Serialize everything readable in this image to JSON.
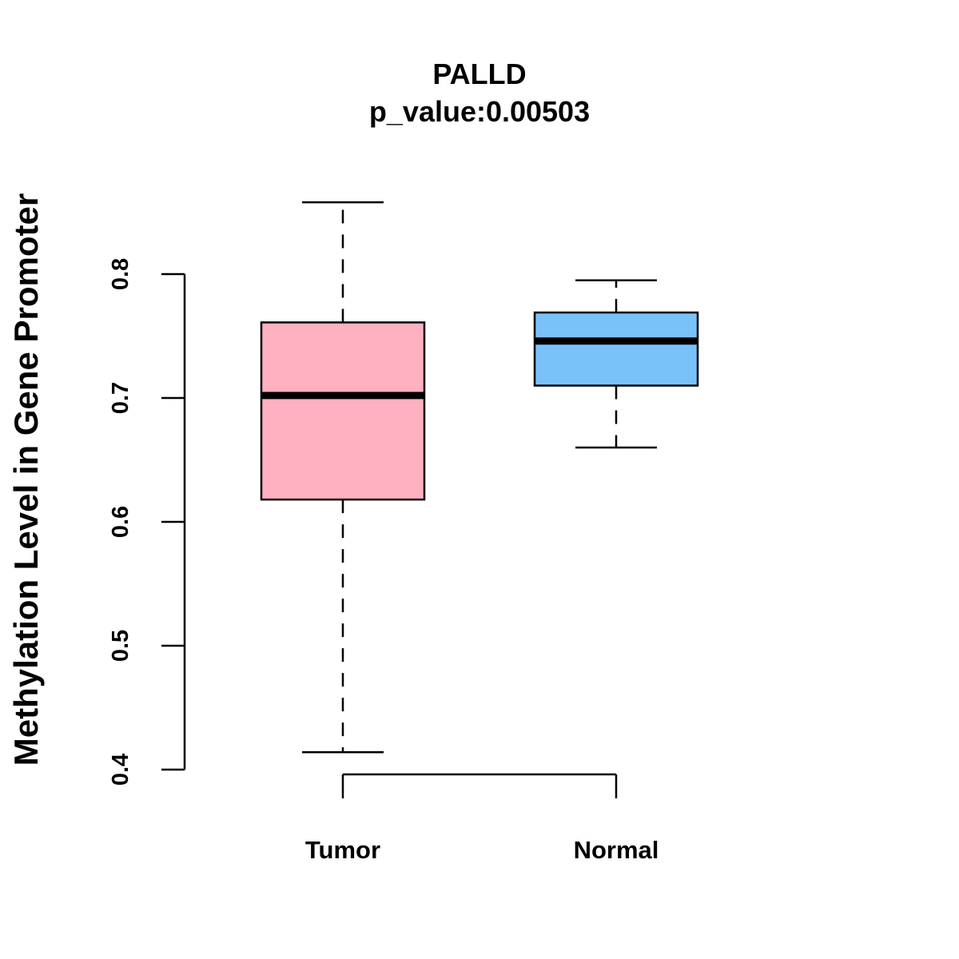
{
  "chart_data": {
    "type": "box",
    "title": "PALLD",
    "subtitle": "p_value:0.00503",
    "xlabel": "",
    "ylabel": "Methylation Level in Gene Promoter",
    "ylim": [
      0.4,
      0.8
    ],
    "yticks": [
      "0.4",
      "0.5",
      "0.6",
      "0.7",
      "0.8"
    ],
    "grid": false,
    "categories": [
      "Tumor",
      "Normal"
    ],
    "series": [
      {
        "name": "Tumor",
        "color": "#FFB0C1",
        "min": 0.414,
        "q1": 0.618,
        "median": 0.702,
        "q3": 0.761,
        "max": 0.858
      },
      {
        "name": "Normal",
        "color": "#79C1F9",
        "min": 0.66,
        "q1": 0.71,
        "median": 0.746,
        "q3": 0.769,
        "max": 0.795
      }
    ],
    "annotations": [
      {
        "type": "bracket",
        "from": "Tumor",
        "to": "Normal",
        "position": "bottom"
      }
    ]
  }
}
